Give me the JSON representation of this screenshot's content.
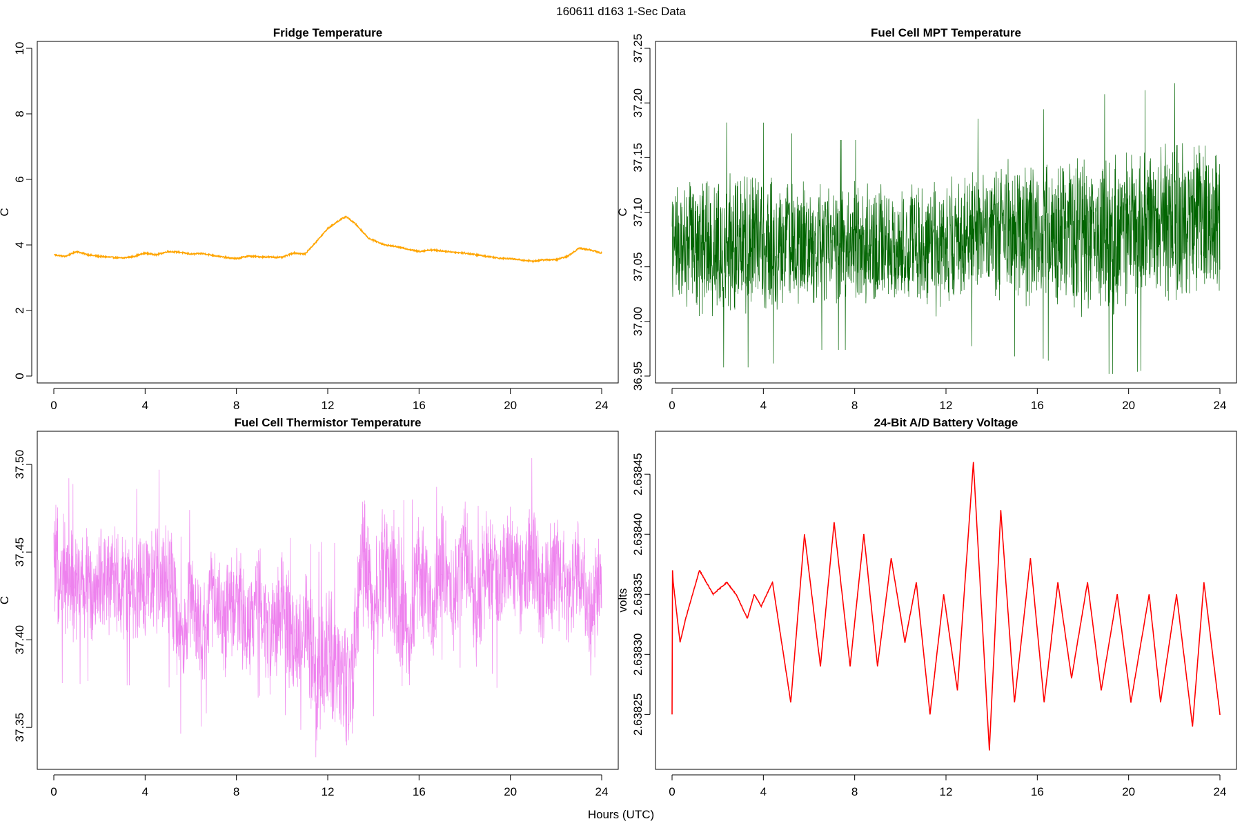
{
  "figure": {
    "title": "160611   d163   1-Sec Data",
    "xlabel": "Hours (UTC)"
  },
  "chart_data": [
    {
      "id": "fridge",
      "type": "line",
      "title": "Fridge Temperature",
      "xlabel": "",
      "ylabel": "C",
      "color": "#FFA500",
      "xlim": [
        0,
        24
      ],
      "ylim": [
        0,
        10
      ],
      "xticks": [
        0,
        4,
        8,
        12,
        16,
        20,
        24
      ],
      "yticks": [
        0,
        2,
        4,
        6,
        8,
        10
      ],
      "ytick_labels": [
        "0",
        "2",
        "4",
        "6",
        "8",
        "10"
      ],
      "noise": 0.02,
      "x": [
        0,
        0.5,
        1,
        1.5,
        2,
        3,
        3.5,
        4,
        4.5,
        5,
        5.5,
        6,
        6.5,
        7,
        7.5,
        8,
        8.5,
        9,
        10,
        10.5,
        11,
        11.5,
        12,
        12.5,
        12.8,
        13.2,
        13.8,
        14.5,
        15,
        16,
        16.5,
        17,
        17.5,
        18,
        18.5,
        19,
        19.5,
        20,
        21,
        21.5,
        22,
        22.5,
        23,
        23.5,
        24
      ],
      "y": [
        3.7,
        3.65,
        3.8,
        3.7,
        3.65,
        3.6,
        3.65,
        3.75,
        3.7,
        3.8,
        3.78,
        3.72,
        3.74,
        3.68,
        3.62,
        3.58,
        3.66,
        3.64,
        3.62,
        3.76,
        3.72,
        4.1,
        4.5,
        4.75,
        4.87,
        4.65,
        4.2,
        4.0,
        3.95,
        3.8,
        3.85,
        3.82,
        3.78,
        3.75,
        3.7,
        3.65,
        3.6,
        3.58,
        3.5,
        3.55,
        3.55,
        3.65,
        3.9,
        3.85,
        3.75
      ]
    },
    {
      "id": "mpt",
      "type": "line",
      "title": "Fuel Cell MPT Temperature",
      "xlabel": "",
      "ylabel": "C",
      "color": "#006400",
      "xlim": [
        0,
        24
      ],
      "ylim": [
        36.95,
        37.25
      ],
      "xticks": [
        0,
        4,
        8,
        12,
        16,
        20,
        24
      ],
      "yticks": [
        36.95,
        37.0,
        37.05,
        37.1,
        37.15,
        37.2,
        37.25
      ],
      "ytick_labels": [
        "36.95",
        "37.00",
        "37.05",
        "37.10",
        "37.15",
        "37.20",
        "37.25"
      ],
      "x": [
        0,
        2,
        4,
        6,
        8,
        10,
        12,
        12.5,
        14,
        16,
        18,
        20,
        22,
        24
      ],
      "y_center": [
        37.07,
        37.07,
        37.07,
        37.07,
        37.07,
        37.07,
        37.07,
        37.08,
        37.08,
        37.08,
        37.08,
        37.08,
        37.09,
        37.1
      ],
      "y_half_range": [
        0.06,
        0.07,
        0.07,
        0.06,
        0.06,
        0.06,
        0.07,
        0.06,
        0.07,
        0.07,
        0.08,
        0.08,
        0.08,
        0.08
      ],
      "y_min": 36.952,
      "y_max": 37.238
    },
    {
      "id": "thermistor",
      "type": "line",
      "title": "Fuel Cell Thermistor Temperature",
      "xlabel": "",
      "ylabel": "C",
      "color": "#EE82EE",
      "xlim": [
        0,
        24
      ],
      "ylim": [
        37.33,
        37.515
      ],
      "xticks": [
        0,
        4,
        8,
        12,
        16,
        20,
        24
      ],
      "yticks": [
        37.35,
        37.4,
        37.45,
        37.5
      ],
      "ytick_labels": [
        "37.35",
        "37.40",
        "37.45",
        "37.50"
      ],
      "x": [
        0,
        1,
        2,
        3,
        4,
        5,
        5.5,
        6,
        6.5,
        7,
        7.5,
        8,
        8.5,
        9,
        9.5,
        10,
        10.5,
        11,
        11.5,
        12,
        12.5,
        13,
        13.5,
        14,
        14.5,
        15,
        15.5,
        16,
        16.5,
        17,
        17.5,
        18,
        18.5,
        19,
        19.5,
        20,
        20.5,
        21,
        21.5,
        22,
        22.5,
        23,
        23.5,
        24
      ],
      "y_center": [
        37.44,
        37.43,
        37.435,
        37.43,
        37.43,
        37.44,
        37.4,
        37.42,
        37.405,
        37.43,
        37.41,
        37.425,
        37.405,
        37.425,
        37.4,
        37.42,
        37.395,
        37.41,
        37.38,
        37.4,
        37.38,
        37.37,
        37.45,
        37.42,
        37.445,
        37.43,
        37.4,
        37.44,
        37.415,
        37.445,
        37.425,
        37.45,
        37.415,
        37.445,
        37.425,
        37.45,
        37.43,
        37.45,
        37.425,
        37.445,
        37.42,
        37.44,
        37.41,
        37.44
      ],
      "y_half_range": [
        0.04,
        0.035,
        0.035,
        0.035,
        0.035,
        0.04,
        0.035,
        0.035,
        0.035,
        0.035,
        0.035,
        0.035,
        0.035,
        0.035,
        0.035,
        0.035,
        0.035,
        0.035,
        0.04,
        0.045,
        0.04,
        0.04,
        0.045,
        0.04,
        0.045,
        0.05,
        0.04,
        0.04,
        0.035,
        0.035,
        0.035,
        0.035,
        0.035,
        0.035,
        0.035,
        0.035,
        0.035,
        0.035,
        0.035,
        0.035,
        0.035,
        0.035,
        0.035,
        0.035
      ],
      "y_min": 37.333,
      "y_max": 37.509
    },
    {
      "id": "battery",
      "type": "line",
      "title": "24-Bit A/D Battery Voltage",
      "xlabel": "",
      "ylabel": "volts",
      "color": "#FF0000",
      "xlim": [
        0,
        24
      ],
      "ylim": [
        2.63821,
        2.63848
      ],
      "xticks": [
        0,
        4,
        8,
        12,
        16,
        20,
        24
      ],
      "yticks": [
        2.63825,
        2.6383,
        2.63835,
        2.6384,
        2.63845
      ],
      "ytick_labels": [
        "2.63825",
        "2.63830",
        "2.63835",
        "2.63840",
        "2.63845"
      ],
      "noise": 4e-07,
      "x": [
        0,
        0.02,
        0.05,
        0.35,
        0.6,
        1.2,
        1.8,
        2.4,
        2.8,
        3.3,
        3.6,
        3.9,
        4.4,
        5.2,
        5.8,
        6.5,
        7.1,
        7.8,
        8.4,
        9.0,
        9.6,
        10.2,
        10.7,
        11.3,
        11.9,
        12.5,
        13.2,
        13.9,
        14.4,
        15.0,
        15.7,
        16.3,
        16.9,
        17.5,
        18.2,
        18.8,
        19.5,
        20.1,
        20.9,
        21.4,
        22.1,
        22.8,
        23.3,
        24
      ],
      "y": [
        2.63825,
        2.63837,
        2.63836,
        2.63831,
        2.63833,
        2.63837,
        2.63835,
        2.63836,
        2.63835,
        2.63833,
        2.63835,
        2.63834,
        2.63836,
        2.63826,
        2.6384,
        2.63829,
        2.63841,
        2.63829,
        2.6384,
        2.63829,
        2.63838,
        2.63831,
        2.63836,
        2.63825,
        2.63835,
        2.63827,
        2.63846,
        2.63822,
        2.63842,
        2.63826,
        2.63838,
        2.63826,
        2.63836,
        2.63828,
        2.63836,
        2.63827,
        2.63835,
        2.63826,
        2.63835,
        2.63826,
        2.63835,
        2.63824,
        2.63836,
        2.63825
      ]
    }
  ]
}
